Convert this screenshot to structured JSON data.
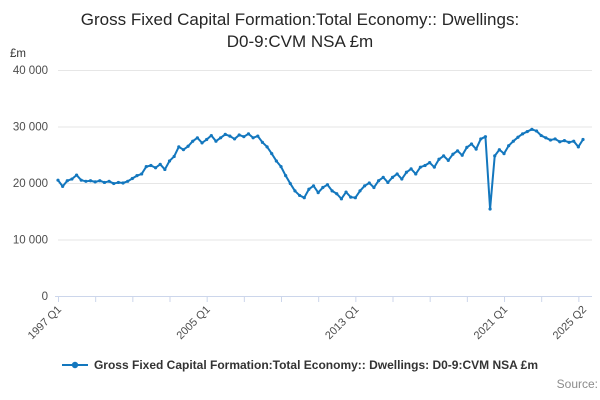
{
  "title": {
    "line1": "Gross Fixed Capital Formation:Total Economy:: Dwellings:",
    "line2": "D0-9:CVM NSA £m",
    "full": "Gross Fixed Capital Formation:Total Economy:: Dwellings: D0-9:CVM NSA £m"
  },
  "y_axis": {
    "unit": "£m",
    "ticks": [
      {
        "value": 40000,
        "label": "40 000"
      },
      {
        "value": 30000,
        "label": "30 000"
      },
      {
        "value": 20000,
        "label": "20 000"
      },
      {
        "value": 10000,
        "label": "10 000"
      },
      {
        "value": 0,
        "label": "0"
      }
    ]
  },
  "x_axis": {
    "tick_every_quarters": 8,
    "labels": [
      {
        "text": "1997 Q1",
        "index": 0
      },
      {
        "text": "2005 Q1",
        "index": 32
      },
      {
        "text": "2013 Q1",
        "index": 64
      },
      {
        "text": "2021 Q1",
        "index": 96
      },
      {
        "text": "2025 Q2",
        "index": 113
      }
    ]
  },
  "legend": {
    "label": "Gross Fixed Capital Formation:Total Economy:: Dwellings: D0-9:CVM NSA £m"
  },
  "source": "Source:",
  "colors": {
    "line": "#1377be",
    "grid": "#e6e6e6",
    "axis": "#ccd6eb",
    "tick_text": "#4d4d4d",
    "unit_text": "#333333"
  },
  "chart_data": {
    "type": "line",
    "title": "Gross Fixed Capital Formation:Total Economy:: Dwellings: D0-9:CVM NSA £m",
    "ylabel": "£m",
    "xlabel": "",
    "ylim": [
      0,
      40000
    ],
    "x_start": "1997 Q1",
    "x_end": "2025 Q2",
    "frequency": "quarterly",
    "grid": true,
    "legend_position": "bottom",
    "series_name": "Gross Fixed Capital Formation:Total Economy:: Dwellings: D0-9:CVM NSA £m",
    "values": [
      20500,
      19400,
      20400,
      20700,
      21400,
      20500,
      20300,
      20400,
      20200,
      20400,
      20100,
      20300,
      19900,
      20100,
      20000,
      20300,
      20800,
      21300,
      21600,
      22900,
      23100,
      22700,
      23300,
      22400,
      23900,
      24700,
      26400,
      25900,
      26500,
      27400,
      28000,
      27100,
      27700,
      28400,
      27400,
      28000,
      28600,
      28300,
      27800,
      28500,
      28200,
      28700,
      28000,
      28300,
      27200,
      26400,
      25200,
      23900,
      22900,
      21300,
      19900,
      18600,
      17800,
      17400,
      18900,
      19500,
      18300,
      19200,
      19700,
      18600,
      18100,
      17200,
      18400,
      17500,
      17400,
      18600,
      19500,
      20000,
      19200,
      20400,
      21000,
      20100,
      21000,
      21600,
      20700,
      21900,
      22500,
      21600,
      22800,
      23100,
      23600,
      22800,
      24200,
      24800,
      24000,
      25100,
      25700,
      24900,
      26300,
      26900,
      26000,
      27800,
      28200,
      15400,
      24800,
      25900,
      25200,
      26600,
      27400,
      28100,
      28700,
      29100,
      29500,
      29200,
      28400,
      28000,
      27600,
      27800,
      27300,
      27500,
      27200,
      27400,
      26400,
      27700
    ]
  }
}
